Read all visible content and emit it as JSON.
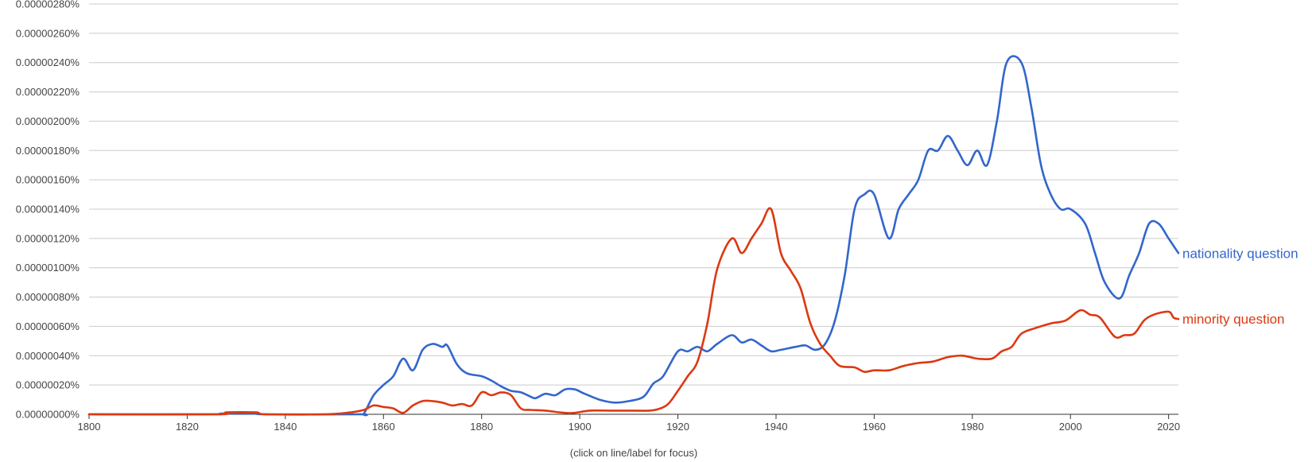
{
  "hint": "(click on line/label for focus)",
  "colors": {
    "nationality": "#3366cc",
    "minority": "#dc3912",
    "grid": "#cccccc"
  },
  "chart_data": {
    "type": "line",
    "title": "",
    "xlabel": "",
    "ylabel": "",
    "xlim": [
      1800,
      2022
    ],
    "ylim": [
      0,
      2.8e-06
    ],
    "x_ticks": [
      1800,
      1820,
      1840,
      1860,
      1880,
      1900,
      1920,
      1940,
      1960,
      1980,
      2000,
      2020
    ],
    "y_ticks": [
      "0.00000000%",
      "0.00000020%",
      "0.00000040%",
      "0.00000060%",
      "0.00000080%",
      "0.00000100%",
      "0.00000120%",
      "0.00000140%",
      "0.00000160%",
      "0.00000180%",
      "0.00000200%",
      "0.00000220%",
      "0.00000240%",
      "0.00000260%",
      "0.00000280%"
    ],
    "grid": true,
    "legend": "inline labels at line ends (right)",
    "series": [
      {
        "name": "nationality question",
        "color": "#3366cc",
        "points": [
          [
            1800,
            0
          ],
          [
            1825,
            0
          ],
          [
            1827,
            5e-09
          ],
          [
            1834,
            5e-09
          ],
          [
            1836,
            0
          ],
          [
            1855,
            0
          ],
          [
            1856,
            5e-09
          ],
          [
            1858,
            1.3e-07
          ],
          [
            1860,
            2e-07
          ],
          [
            1862,
            2.6e-07
          ],
          [
            1864,
            3.8e-07
          ],
          [
            1866,
            3e-07
          ],
          [
            1868,
            4.4e-07
          ],
          [
            1870,
            4.8e-07
          ],
          [
            1872,
            4.6e-07
          ],
          [
            1873,
            4.7e-07
          ],
          [
            1875,
            3.4e-07
          ],
          [
            1877,
            2.8e-07
          ],
          [
            1880,
            2.6e-07
          ],
          [
            1882,
            2.3e-07
          ],
          [
            1884,
            1.9e-07
          ],
          [
            1886,
            1.6e-07
          ],
          [
            1888,
            1.5e-07
          ],
          [
            1890,
            1.2e-07
          ],
          [
            1891,
            1.1e-07
          ],
          [
            1893,
            1.4e-07
          ],
          [
            1895,
            1.3e-07
          ],
          [
            1897,
            1.7e-07
          ],
          [
            1899,
            1.7e-07
          ],
          [
            1901,
            1.4e-07
          ],
          [
            1904,
            1e-07
          ],
          [
            1907,
            8e-08
          ],
          [
            1910,
            9e-08
          ],
          [
            1913,
            1.2e-07
          ],
          [
            1915,
            2.1e-07
          ],
          [
            1917,
            2.6e-07
          ],
          [
            1920,
            4.3e-07
          ],
          [
            1922,
            4.3e-07
          ],
          [
            1924,
            4.6e-07
          ],
          [
            1926,
            4.3e-07
          ],
          [
            1928,
            4.8e-07
          ],
          [
            1931,
            5.4e-07
          ],
          [
            1933,
            4.9e-07
          ],
          [
            1935,
            5.1e-07
          ],
          [
            1937,
            4.7e-07
          ],
          [
            1939,
            4.3e-07
          ],
          [
            1941,
            4.4e-07
          ],
          [
            1944,
            4.6e-07
          ],
          [
            1946,
            4.7e-07
          ],
          [
            1948,
            4.4e-07
          ],
          [
            1950,
            4.8e-07
          ],
          [
            1952,
            6.4e-07
          ],
          [
            1954,
            9.5e-07
          ],
          [
            1956,
            1.4e-06
          ],
          [
            1958,
            1.5e-06
          ],
          [
            1960,
            1.5e-06
          ],
          [
            1963,
            1.2e-06
          ],
          [
            1965,
            1.4e-06
          ],
          [
            1967,
            1.5e-06
          ],
          [
            1969,
            1.6e-06
          ],
          [
            1971,
            1.8e-06
          ],
          [
            1973,
            1.8e-06
          ],
          [
            1975,
            1.9e-06
          ],
          [
            1977,
            1.8e-06
          ],
          [
            1979,
            1.7e-06
          ],
          [
            1981,
            1.8e-06
          ],
          [
            1983,
            1.7e-06
          ],
          [
            1985,
            2e-06
          ],
          [
            1987,
            2.4e-06
          ],
          [
            1990,
            2.4e-06
          ],
          [
            1992,
            2.1e-06
          ],
          [
            1994,
            1.7e-06
          ],
          [
            1996,
            1.5e-06
          ],
          [
            1998,
            1.4e-06
          ],
          [
            2000,
            1.4e-06
          ],
          [
            2003,
            1.3e-06
          ],
          [
            2005,
            1.1e-06
          ],
          [
            2007,
            9e-07
          ],
          [
            2010,
            7.9e-07
          ],
          [
            2012,
            9.5e-07
          ],
          [
            2014,
            1.1e-06
          ],
          [
            2016,
            1.3e-06
          ],
          [
            2018,
            1.3e-06
          ],
          [
            2020,
            1.2e-06
          ],
          [
            2022,
            1.1e-06
          ]
        ]
      },
      {
        "name": "minority question",
        "color": "#dc3912",
        "points": [
          [
            1800,
            0
          ],
          [
            1826,
            0
          ],
          [
            1828,
            1.3e-08
          ],
          [
            1834,
            1.3e-08
          ],
          [
            1836,
            0
          ],
          [
            1848,
            0
          ],
          [
            1853,
            1.2e-08
          ],
          [
            1856,
            3e-08
          ],
          [
            1858,
            6e-08
          ],
          [
            1860,
            5e-08
          ],
          [
            1862,
            4e-08
          ],
          [
            1864,
            1e-08
          ],
          [
            1866,
            6e-08
          ],
          [
            1868,
            9e-08
          ],
          [
            1870,
            9e-08
          ],
          [
            1872,
            8e-08
          ],
          [
            1874,
            6e-08
          ],
          [
            1876,
            7e-08
          ],
          [
            1878,
            6e-08
          ],
          [
            1880,
            1.5e-07
          ],
          [
            1882,
            1.3e-07
          ],
          [
            1884,
            1.5e-07
          ],
          [
            1886,
            1.3e-07
          ],
          [
            1888,
            4e-08
          ],
          [
            1890,
            3e-08
          ],
          [
            1893,
            2.5e-08
          ],
          [
            1898,
            8e-09
          ],
          [
            1902,
            2.5e-08
          ],
          [
            1906,
            2.5e-08
          ],
          [
            1910,
            2.5e-08
          ],
          [
            1914,
            2.5e-08
          ],
          [
            1916,
            3.5e-08
          ],
          [
            1918,
            7e-08
          ],
          [
            1920,
            1.6e-07
          ],
          [
            1922,
            2.6e-07
          ],
          [
            1924,
            3.6e-07
          ],
          [
            1926,
            6.2e-07
          ],
          [
            1928,
            9.9e-07
          ],
          [
            1931,
            1.2e-06
          ],
          [
            1933,
            1.1e-06
          ],
          [
            1935,
            1.2e-06
          ],
          [
            1937,
            1.3e-06
          ],
          [
            1939,
            1.4e-06
          ],
          [
            1941,
            1.1e-06
          ],
          [
            1943,
            9.8e-07
          ],
          [
            1945,
            8.6e-07
          ],
          [
            1947,
            6.2e-07
          ],
          [
            1949,
            4.8e-07
          ],
          [
            1951,
            4e-07
          ],
          [
            1953,
            3.3e-07
          ],
          [
            1956,
            3.2e-07
          ],
          [
            1958,
            2.9e-07
          ],
          [
            1960,
            3e-07
          ],
          [
            1963,
            3e-07
          ],
          [
            1966,
            3.3e-07
          ],
          [
            1969,
            3.5e-07
          ],
          [
            1972,
            3.6e-07
          ],
          [
            1975,
            3.9e-07
          ],
          [
            1978,
            4e-07
          ],
          [
            1981,
            3.8e-07
          ],
          [
            1984,
            3.8e-07
          ],
          [
            1986,
            4.3e-07
          ],
          [
            1988,
            4.6e-07
          ],
          [
            1990,
            5.5e-07
          ],
          [
            1993,
            5.9e-07
          ],
          [
            1996,
            6.2e-07
          ],
          [
            1999,
            6.4e-07
          ],
          [
            2002,
            7.1e-07
          ],
          [
            2004,
            6.8e-07
          ],
          [
            2006,
            6.6e-07
          ],
          [
            2009,
            5.3e-07
          ],
          [
            2011,
            5.4e-07
          ],
          [
            2013,
            5.5e-07
          ],
          [
            2015,
            6.4e-07
          ],
          [
            2017,
            6.8e-07
          ],
          [
            2020,
            7e-07
          ],
          [
            2021,
            6.6e-07
          ],
          [
            2022,
            6.5e-07
          ]
        ]
      }
    ]
  }
}
